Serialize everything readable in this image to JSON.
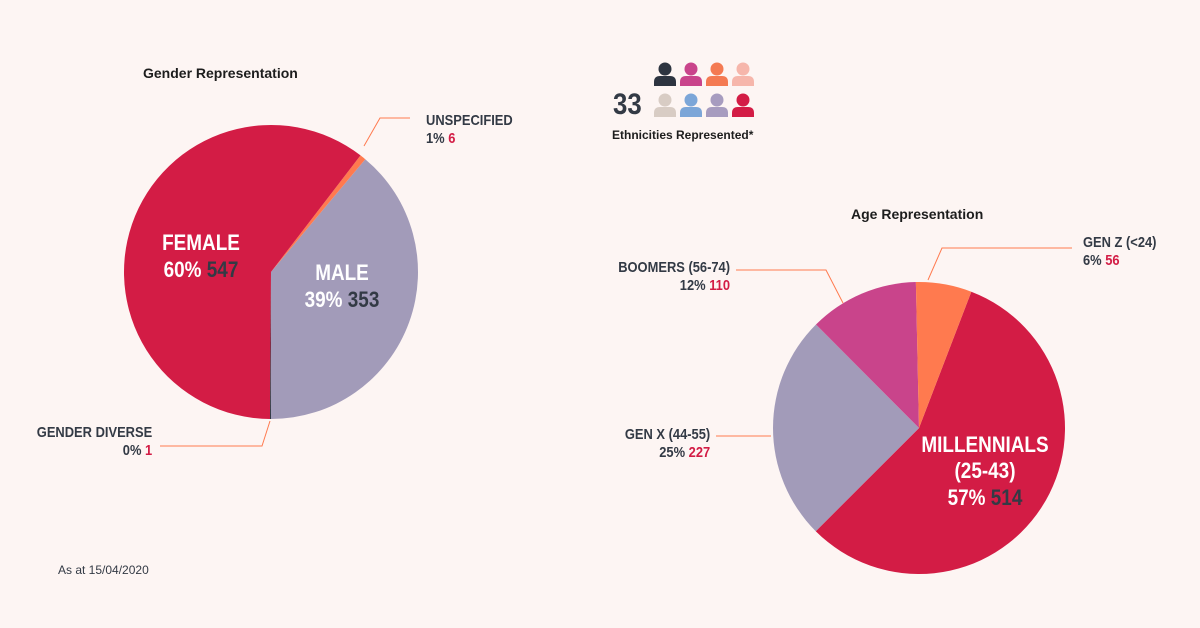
{
  "gender": {
    "title": "Gender Representation",
    "labels": {
      "female_name": "FEMALE",
      "female_pct": "60%",
      "female_count": "547",
      "male_name": "MALE",
      "male_pct": "39%",
      "male_count": "353",
      "unspecified_name": "UNSPECIFIED",
      "unspecified_pct": "1%",
      "unspecified_count": "6",
      "diverse_name": "GENDER DIVERSE",
      "diverse_pct": "0%",
      "diverse_count": "1"
    }
  },
  "ethnicity": {
    "count": "33",
    "caption": "Ethnicities Represented*",
    "icons": [
      {
        "name": "person-icon",
        "color": "#2d3440"
      },
      {
        "name": "person-icon",
        "color": "#c9448b"
      },
      {
        "name": "person-icon",
        "color": "#f47a52"
      },
      {
        "name": "person-icon",
        "color": "#f6b6ab"
      },
      {
        "name": "person-icon",
        "color": "#d8ccc4"
      },
      {
        "name": "person-icon",
        "color": "#7ca6d8"
      },
      {
        "name": "person-icon",
        "color": "#a79cbf"
      },
      {
        "name": "person-icon",
        "color": "#d31c45"
      }
    ]
  },
  "age": {
    "title": "Age Representation",
    "labels": {
      "millennials_name": "MILLENNIALS",
      "millennials_range": "(25-43)",
      "millennials_pct": "57%",
      "millennials_count": "514",
      "genx_name": "GEN X (44-55)",
      "genx_pct": "25%",
      "genx_count": "227",
      "boomers_name": "BOOMERS (56-74)",
      "boomers_pct": "12%",
      "boomers_count": "110",
      "genz_name": "GEN Z (<24)",
      "genz_pct": "6%",
      "genz_count": "56"
    }
  },
  "footnote": "As at 15/04/2020",
  "colors": {
    "red": "#d31c45",
    "lavender": "#a29bb9",
    "orange": "#ff7a4f",
    "magenta": "#c9448b",
    "dark": "#333a45",
    "background": "#fdf5f3"
  },
  "chart_data": [
    {
      "type": "pie",
      "title": "Gender Representation",
      "categories": [
        "FEMALE",
        "MALE",
        "UNSPECIFIED",
        "GENDER DIVERSE"
      ],
      "values": [
        547,
        353,
        6,
        1
      ],
      "percents": [
        60,
        39,
        1,
        0
      ],
      "colors": [
        "#d31c45",
        "#a29bb9",
        "#ff7a4f",
        "#333a45"
      ]
    },
    {
      "type": "pie",
      "title": "Age Representation",
      "categories": [
        "MILLENNIALS (25-43)",
        "GEN X (44-55)",
        "BOOMERS (56-74)",
        "GEN Z (<24)"
      ],
      "values": [
        514,
        227,
        110,
        56
      ],
      "percents": [
        57,
        25,
        12,
        6
      ],
      "colors": [
        "#d31c45",
        "#a29bb9",
        "#c9448b",
        "#ff7a4f"
      ]
    }
  ]
}
